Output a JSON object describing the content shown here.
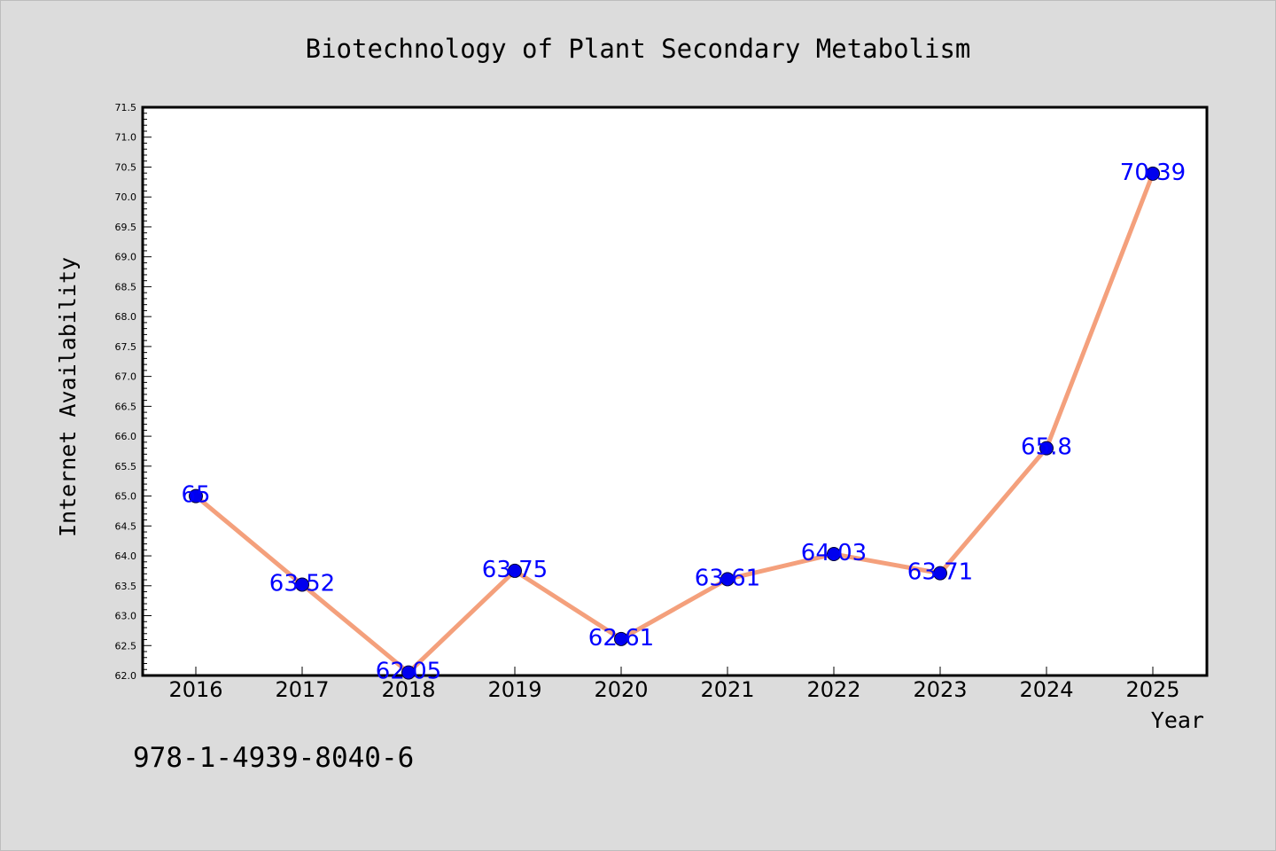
{
  "chart_data": {
    "type": "line",
    "title": "Biotechnology of Plant Secondary Metabolism",
    "xlabel": "Year",
    "ylabel": "Internet Availability",
    "categories": [
      "2016",
      "2017",
      "2018",
      "2019",
      "2020",
      "2021",
      "2022",
      "2023",
      "2024",
      "2025"
    ],
    "values": [
      65,
      63.52,
      62.05,
      63.75,
      62.61,
      63.61,
      64.03,
      63.71,
      65.8,
      70.39
    ],
    "value_labels": [
      "65",
      "63.52",
      "62.05",
      "63.75",
      "62.61",
      "63.61",
      "64.03",
      "63.71",
      "65.8",
      "70.39"
    ],
    "y_ticks": [
      "62.0",
      "62.5",
      "63.0",
      "63.5",
      "64.0",
      "64.5",
      "65.0",
      "65.5",
      "66.0",
      "66.5",
      "67.0",
      "67.5",
      "68.0",
      "68.5",
      "69.0",
      "69.5",
      "70.0",
      "70.5",
      "71.0",
      "71.5"
    ],
    "ylim": [
      62.0,
      71.5
    ],
    "grid": false,
    "line_color": "#f4a07c",
    "marker_color": "#0000ee",
    "label_color": "#0000ff",
    "background_color": "#dcdcdc",
    "plot_background_color": "#ffffff"
  },
  "footer": {
    "isbn": "978-1-4939-8040-6"
  }
}
